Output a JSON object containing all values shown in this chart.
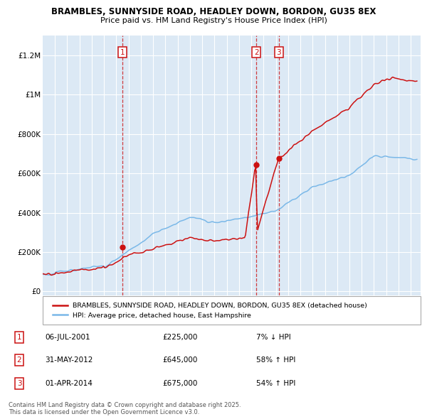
{
  "title1": "BRAMBLES, SUNNYSIDE ROAD, HEADLEY DOWN, BORDON, GU35 8EX",
  "title2": "Price paid vs. HM Land Registry's House Price Index (HPI)",
  "ylabel_ticks": [
    "£0",
    "£200K",
    "£400K",
    "£600K",
    "£800K",
    "£1M",
    "£1.2M"
  ],
  "ytick_vals": [
    0,
    200000,
    400000,
    600000,
    800000,
    1000000,
    1200000
  ],
  "ylim": [
    -20000,
    1300000
  ],
  "xlim_start": 1995.0,
  "xlim_end": 2025.8,
  "sale_dates": [
    2001.52,
    2012.42,
    2014.25
  ],
  "sale_prices": [
    225000,
    645000,
    675000
  ],
  "sale_labels": [
    "1",
    "2",
    "3"
  ],
  "hpi_color": "#7ab8e8",
  "price_color": "#cc1111",
  "legend_label_price": "BRAMBLES, SUNNYSIDE ROAD, HEADLEY DOWN, BORDON, GU35 8EX (detached house)",
  "legend_label_hpi": "HPI: Average price, detached house, East Hampshire",
  "table_data": [
    [
      "1",
      "06-JUL-2001",
      "£225,000",
      "7% ↓ HPI"
    ],
    [
      "2",
      "31-MAY-2012",
      "£645,000",
      "58% ↑ HPI"
    ],
    [
      "3",
      "01-APR-2014",
      "£675,000",
      "54% ↑ HPI"
    ]
  ],
  "footnote": "Contains HM Land Registry data © Crown copyright and database right 2025.\nThis data is licensed under the Open Government Licence v3.0.",
  "bg_color": "#ffffff",
  "chart_bg_color": "#dce9f5",
  "grid_color": "#ffffff"
}
